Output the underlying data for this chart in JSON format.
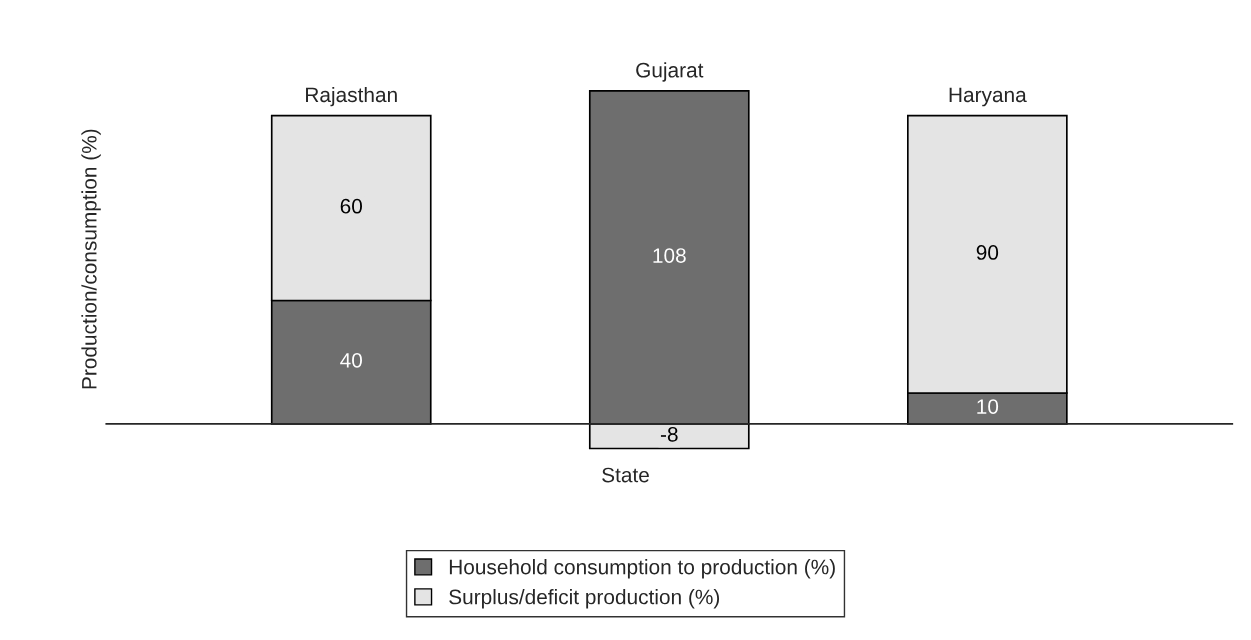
{
  "chart_data": {
    "type": "bar",
    "stacked": true,
    "xlabel": "State",
    "ylabel": "Production/consumption (%)",
    "categories": [
      "Rajasthan",
      "Gujarat",
      "Haryana"
    ],
    "series": [
      {
        "name": "Household consumption to production (%)",
        "color": "#6e6e6e",
        "values": [
          40,
          108,
          10
        ]
      },
      {
        "name": "Surplus/deficit production (%)",
        "color": "#e4e4e4",
        "values": [
          60,
          -8,
          90
        ]
      }
    ],
    "data_labels": true,
    "legend": "bottom"
  }
}
